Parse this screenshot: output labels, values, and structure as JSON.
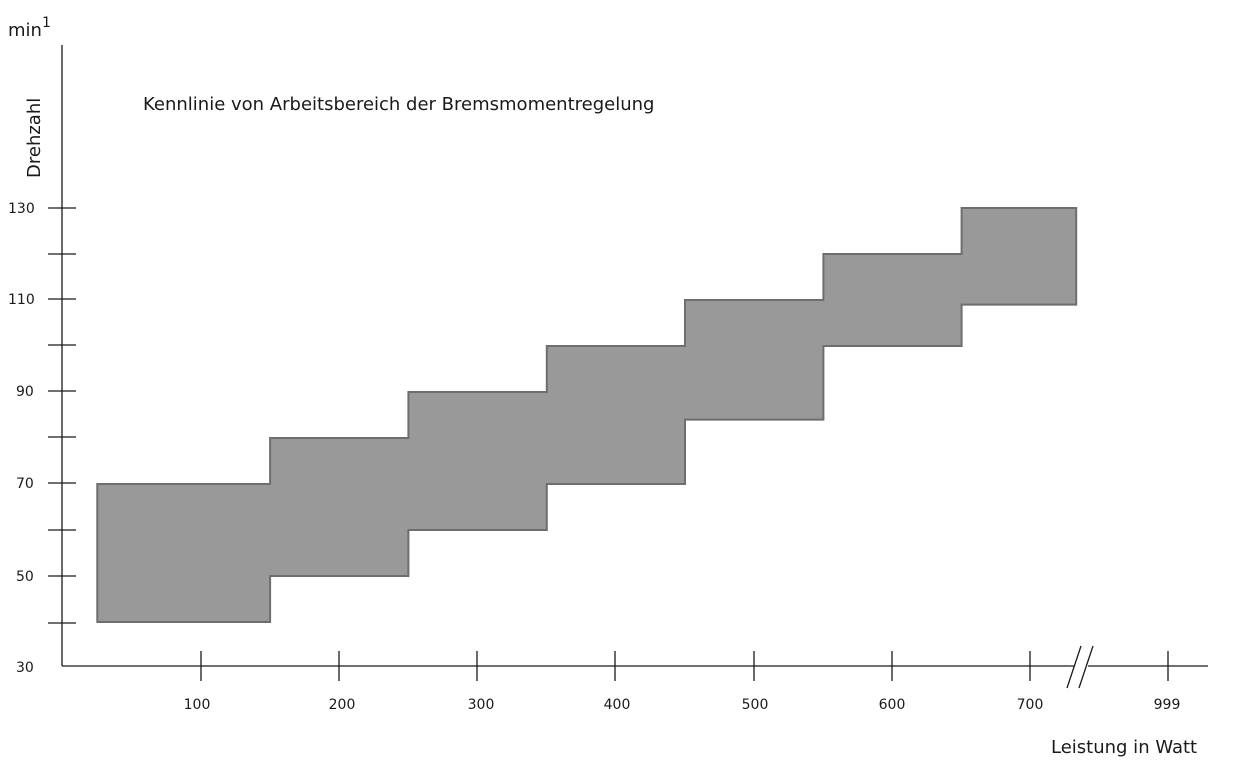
{
  "chart_data": {
    "type": "area",
    "title": "Kennlinie von Arbeitsbereich der Bremsmomentregelung",
    "unit": "min",
    "unit_superscript": "1",
    "ylabel": "Drehzahl",
    "xlabel": "Leistung in Watt",
    "x_tick_labels": [
      "100",
      "200",
      "300",
      "400",
      "500",
      "600",
      "700",
      "999"
    ],
    "y_tick_labels": [
      "130",
      "110",
      "90",
      "70",
      "50",
      "30"
    ],
    "ylim": [
      30,
      140
    ],
    "axis_break_after": "700",
    "grid": false,
    "legend": "none",
    "color": "#999999",
    "band_upper": [
      {
        "x": 25,
        "y": 70
      },
      {
        "x": 150,
        "y": 70
      },
      {
        "x": 150,
        "y": 80
      },
      {
        "x": 250,
        "y": 80
      },
      {
        "x": 250,
        "y": 90
      },
      {
        "x": 350,
        "y": 90
      },
      {
        "x": 350,
        "y": 100
      },
      {
        "x": 450,
        "y": 100
      },
      {
        "x": 450,
        "y": 110
      },
      {
        "x": 550,
        "y": 110
      },
      {
        "x": 550,
        "y": 120
      },
      {
        "x": 650,
        "y": 120
      },
      {
        "x": 650,
        "y": 130
      },
      {
        "x": 800,
        "y": 130
      }
    ],
    "band_lower": [
      {
        "x": 800,
        "y": 109
      },
      {
        "x": 650,
        "y": 109
      },
      {
        "x": 650,
        "y": 100
      },
      {
        "x": 550,
        "y": 100
      },
      {
        "x": 550,
        "y": 84
      },
      {
        "x": 450,
        "y": 84
      },
      {
        "x": 450,
        "y": 70
      },
      {
        "x": 350,
        "y": 70
      },
      {
        "x": 350,
        "y": 60
      },
      {
        "x": 250,
        "y": 60
      },
      {
        "x": 250,
        "y": 50
      },
      {
        "x": 150,
        "y": 50
      },
      {
        "x": 150,
        "y": 40
      },
      {
        "x": 25,
        "y": 40
      }
    ]
  }
}
